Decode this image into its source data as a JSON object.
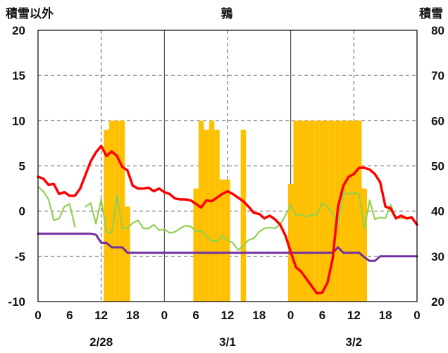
{
  "chart_data": {
    "type": "bar+line",
    "title": "鶉",
    "y_left_label": "積雪以外",
    "y_right_label": "積雪",
    "y_left_lim": [
      -10,
      20
    ],
    "y_right_lim": [
      20,
      80
    ],
    "y_left_ticks": [
      "20",
      "15",
      "10",
      "5",
      "0",
      "-5",
      "-10"
    ],
    "y_right_ticks": [
      "80",
      "70",
      "60",
      "50",
      "40",
      "30",
      "20"
    ],
    "x_range_hours": [
      0,
      72
    ],
    "x_tick_labels": [
      "0",
      "6",
      "12",
      "18",
      "0",
      "6",
      "12",
      "18",
      "0",
      "6",
      "12",
      "18",
      "0"
    ],
    "date_labels": [
      "2/28",
      "3/1",
      "3/2"
    ],
    "grid": {
      "day_lines": "solid",
      "twelve_hour_lines": "dashed",
      "y_lines": "dashed"
    },
    "colors": {
      "snow_depth": "#FFC000",
      "red_series": "#FF0000",
      "green_series": "#92D050",
      "purple_series": "#7030A0"
    },
    "snow_depth_bars": [
      [
        13,
        58
      ],
      [
        14,
        60
      ],
      [
        15,
        60
      ],
      [
        16,
        60
      ],
      [
        17,
        41
      ],
      [
        30,
        45
      ],
      [
        31,
        60
      ],
      [
        32,
        58
      ],
      [
        33,
        60
      ],
      [
        34,
        58
      ],
      [
        35,
        47
      ],
      [
        36,
        47
      ],
      [
        39,
        58
      ],
      [
        48,
        46
      ],
      [
        49,
        60
      ],
      [
        50,
        60
      ],
      [
        51,
        60
      ],
      [
        52,
        60
      ],
      [
        53,
        60
      ],
      [
        54,
        60
      ],
      [
        55,
        60
      ],
      [
        56,
        60
      ],
      [
        57,
        60
      ],
      [
        58,
        60
      ],
      [
        59,
        60
      ],
      [
        60,
        60
      ],
      [
        61,
        60
      ],
      [
        62,
        45
      ]
    ],
    "red_series": [
      [
        0,
        3.8
      ],
      [
        1,
        3.6
      ],
      [
        2,
        2.9
      ],
      [
        3,
        3.0
      ],
      [
        4,
        1.9
      ],
      [
        5,
        2.1
      ],
      [
        6,
        1.7
      ],
      [
        7,
        1.7
      ],
      [
        8,
        2.5
      ],
      [
        9,
        4.0
      ],
      [
        10,
        5.5
      ],
      [
        11,
        6.5
      ],
      [
        12,
        7.2
      ],
      [
        13,
        6.1
      ],
      [
        14,
        6.6
      ],
      [
        15,
        6.1
      ],
      [
        16,
        4.9
      ],
      [
        17,
        4.5
      ],
      [
        18,
        2.8
      ],
      [
        19,
        2.5
      ],
      [
        20,
        2.5
      ],
      [
        21,
        2.6
      ],
      [
        22,
        2.2
      ],
      [
        23,
        2.5
      ],
      [
        24,
        2.1
      ],
      [
        25,
        1.9
      ],
      [
        26,
        1.4
      ],
      [
        27,
        1.3
      ],
      [
        28,
        1.3
      ],
      [
        29,
        1.2
      ],
      [
        30,
        0.8
      ],
      [
        31,
        0.4
      ],
      [
        32,
        1.2
      ],
      [
        33,
        1.1
      ],
      [
        34,
        1.5
      ],
      [
        35,
        1.9
      ],
      [
        36,
        2.2
      ],
      [
        37,
        1.9
      ],
      [
        38,
        1.5
      ],
      [
        39,
        1.1
      ],
      [
        40,
        0.5
      ],
      [
        41,
        -0.2
      ],
      [
        42,
        -0.3
      ],
      [
        43,
        -0.8
      ],
      [
        44,
        -0.5
      ],
      [
        45,
        -0.9
      ],
      [
        46,
        -1.5
      ],
      [
        47,
        -2.7
      ],
      [
        48,
        -4.5
      ],
      [
        49,
        -6.2
      ],
      [
        50,
        -6.7
      ],
      [
        51,
        -7.5
      ],
      [
        52,
        -8.3
      ],
      [
        53,
        -9.1
      ],
      [
        54,
        -9.0
      ],
      [
        55,
        -7.9
      ],
      [
        56,
        -5.2
      ],
      [
        57,
        0.5
      ],
      [
        58,
        2.8
      ],
      [
        59,
        3.8
      ],
      [
        60,
        4.1
      ],
      [
        61,
        4.8
      ],
      [
        62,
        4.8
      ],
      [
        63,
        4.6
      ],
      [
        64,
        4.1
      ],
      [
        65,
        3.2
      ],
      [
        66,
        0.5
      ],
      [
        67,
        0.3
      ],
      [
        68,
        -0.8
      ],
      [
        69,
        -0.5
      ],
      [
        70,
        -0.8
      ],
      [
        71,
        -0.7
      ],
      [
        72,
        -1.5
      ]
    ],
    "green_series": [
      [
        0,
        2.7
      ],
      [
        1,
        2.2
      ],
      [
        2,
        1.3
      ],
      [
        3,
        -1.0
      ],
      [
        4,
        -0.8
      ],
      [
        5,
        0.5
      ],
      [
        6,
        0.8
      ],
      [
        7,
        -1.7
      ],
      [
        9,
        0.5
      ],
      [
        10,
        0.9
      ],
      [
        11,
        -1.4
      ],
      [
        12,
        1.3
      ],
      [
        13,
        -2.3
      ],
      [
        14,
        -2.4
      ],
      [
        15,
        1.8
      ],
      [
        16,
        -1.9
      ],
      [
        17,
        -1.9
      ],
      [
        18,
        -1.3
      ],
      [
        19,
        -1.0
      ],
      [
        20,
        -1.9
      ],
      [
        21,
        -1.9
      ],
      [
        22,
        -1.5
      ],
      [
        23,
        -2.1
      ],
      [
        24,
        -2.0
      ],
      [
        25,
        -2.4
      ],
      [
        26,
        -2.3
      ],
      [
        27,
        -1.9
      ],
      [
        28,
        -1.6
      ],
      [
        29,
        -1.7
      ],
      [
        30,
        -2.2
      ],
      [
        31,
        -2.2
      ],
      [
        32,
        -2.8
      ],
      [
        33,
        -3.3
      ],
      [
        34,
        -3.3
      ],
      [
        35,
        -2.7
      ],
      [
        36,
        -3.2
      ],
      [
        37,
        -3.5
      ],
      [
        38,
        -4.3
      ],
      [
        39,
        -3.8
      ],
      [
        40,
        -3.2
      ],
      [
        41,
        -3.0
      ],
      [
        42,
        -2.3
      ],
      [
        43,
        -1.9
      ],
      [
        44,
        -1.8
      ],
      [
        45,
        -1.9
      ],
      [
        46,
        -1.5
      ],
      [
        47,
        -0.5
      ],
      [
        48,
        0.7
      ],
      [
        49,
        -0.4
      ],
      [
        50,
        -0.4
      ],
      [
        51,
        -0.6
      ],
      [
        52,
        -0.4
      ],
      [
        53,
        -0.4
      ],
      [
        54,
        0.9
      ],
      [
        55,
        0.5
      ],
      [
        56,
        -0.3
      ],
      [
        57,
        -1.5
      ],
      [
        58,
        2.0
      ],
      [
        59,
        1.9
      ],
      [
        60,
        2.0
      ],
      [
        61,
        1.9
      ],
      [
        62,
        -1.9
      ],
      [
        63,
        1.2
      ],
      [
        64,
        -0.9
      ],
      [
        65,
        -0.7
      ],
      [
        66,
        -0.8
      ],
      [
        67,
        0.7
      ],
      [
        68,
        -0.7
      ],
      [
        69,
        -0.8
      ],
      [
        70,
        -0.8
      ],
      [
        71,
        -0.8
      ]
    ],
    "purple_series": [
      [
        0,
        -2.5
      ],
      [
        10,
        -2.5
      ],
      [
        11,
        -2.6
      ],
      [
        12,
        -3.5
      ],
      [
        13,
        -3.5
      ],
      [
        14,
        -4.0
      ],
      [
        16,
        -4.0
      ],
      [
        17,
        -4.6
      ],
      [
        56,
        -4.6
      ],
      [
        57,
        -4.0
      ],
      [
        58,
        -4.6
      ],
      [
        61,
        -4.6
      ],
      [
        62,
        -5.1
      ],
      [
        63,
        -5.5
      ],
      [
        64,
        -5.5
      ],
      [
        65,
        -5.0
      ],
      [
        72,
        -5.0
      ]
    ]
  }
}
